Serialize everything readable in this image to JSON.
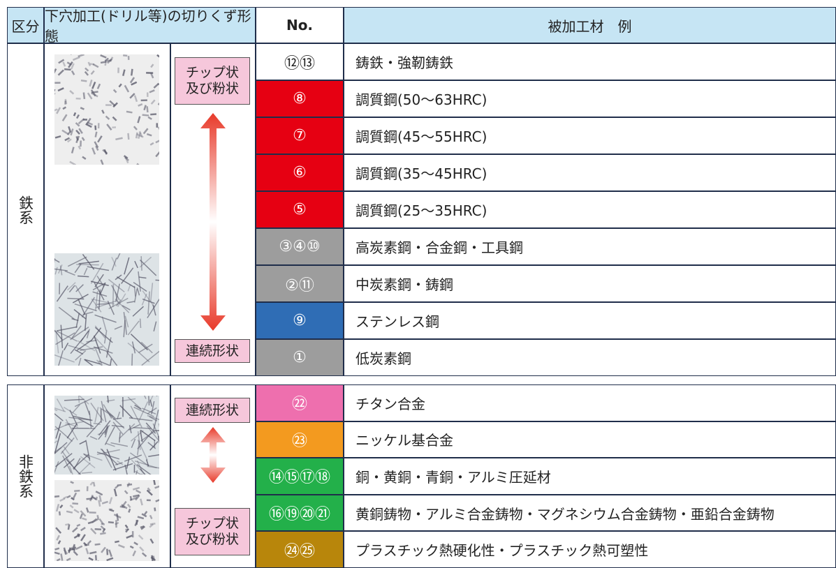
{
  "header": {
    "category": "区分",
    "chip_form": "下穴加工(ドリル等)の切りくず形態",
    "no": "No.",
    "material": "被加工材　例"
  },
  "sections": [
    {
      "category": "鉄系",
      "top_label": [
        "チップ状",
        "及び粉状"
      ],
      "bottom_label": [
        "連続形状"
      ],
      "rows": [
        {
          "no": "⑫⑬",
          "material": "鋳鉄・強靭鋳鉄",
          "color": "#ffffff"
        },
        {
          "no": "⑧",
          "material": "調質鋼(50～63HRC)",
          "color": "#e60012"
        },
        {
          "no": "⑦",
          "material": "調質鋼(45～55HRC)",
          "color": "#e60012"
        },
        {
          "no": "⑥",
          "material": "調質鋼(35～45HRC)",
          "color": "#e60012"
        },
        {
          "no": "⑤",
          "material": "調質鋼(25～35HRC)",
          "color": "#e60012"
        },
        {
          "no": "③④⑩",
          "material": "高炭素鋼・合金鋼・工具鋼",
          "color": "#9d9d9d"
        },
        {
          "no": "②⑪",
          "material": "中炭素鋼・鋳鋼",
          "color": "#9d9d9d"
        },
        {
          "no": "⑨",
          "material": "ステンレス鋼",
          "color": "#2f6db5"
        },
        {
          "no": "①",
          "material": "低炭素鋼",
          "color": "#9d9d9d"
        }
      ]
    },
    {
      "category": "非鉄系",
      "top_label": [
        "連続形状"
      ],
      "bottom_label": [
        "チップ状",
        "及び粉状"
      ],
      "rows": [
        {
          "no": "㉒",
          "material": "チタン合金",
          "color": "#ee6fae"
        },
        {
          "no": "㉓",
          "material": "ニッケル基合金",
          "color": "#f39a1f"
        },
        {
          "no": "⑭⑮⑰⑱",
          "material": "銅・黄銅・青銅・アルミ圧延材",
          "color": "#23b04a"
        },
        {
          "no": "⑯⑲⑳㉑",
          "material": "黄銅鋳物・アルミ合金鋳物・マグネシウム合金鋳物・亜鉛合金鋳物",
          "color": "#23b04a"
        },
        {
          "no": "㉔㉕",
          "material": "プラスチック熱硬化性・プラスチック熱可塑性",
          "color": "#b8860b"
        }
      ]
    }
  ]
}
